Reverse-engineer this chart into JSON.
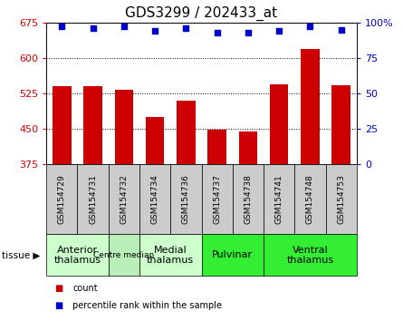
{
  "title": "GDS3299 / 202433_at",
  "samples": [
    "GSM154729",
    "GSM154731",
    "GSM154732",
    "GSM154734",
    "GSM154736",
    "GSM154737",
    "GSM154738",
    "GSM154741",
    "GSM154748",
    "GSM154753"
  ],
  "counts": [
    540,
    540,
    533,
    475,
    508,
    447,
    443,
    543,
    618,
    542
  ],
  "percentiles": [
    97,
    96,
    97,
    94,
    96,
    93,
    93,
    94,
    97,
    95
  ],
  "ylim_left": [
    375,
    675
  ],
  "ylim_right": [
    0,
    100
  ],
  "yticks_left": [
    375,
    450,
    525,
    600,
    675
  ],
  "yticks_right": [
    0,
    25,
    50,
    75,
    100
  ],
  "bar_color": "#cc0000",
  "dot_color": "#0000cc",
  "bar_width": 0.6,
  "tissue_groups": [
    {
      "label": "Anterior\nthalamus",
      "start": 0,
      "end": 2,
      "color": "#ccffcc",
      "fontsize": 8
    },
    {
      "label": "Centre median",
      "start": 2,
      "end": 3,
      "color": "#b8eeb8",
      "fontsize": 6.5
    },
    {
      "label": "Medial\nthalamus",
      "start": 3,
      "end": 5,
      "color": "#ccffcc",
      "fontsize": 8
    },
    {
      "label": "Pulvinar",
      "start": 5,
      "end": 7,
      "color": "#33ee33",
      "fontsize": 8
    },
    {
      "label": "Ventral\nthalamus",
      "start": 7,
      "end": 10,
      "color": "#33ee33",
      "fontsize": 8
    }
  ],
  "ylabel_left_color": "#cc0000",
  "ylabel_right_color": "#0000cc",
  "tick_row_color": "#cccccc",
  "legend_items": [
    {
      "label": "count",
      "color": "#cc0000"
    },
    {
      "label": "percentile rank within the sample",
      "color": "#0000cc"
    }
  ]
}
